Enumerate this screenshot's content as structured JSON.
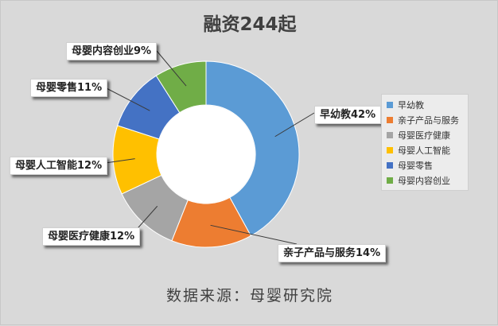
{
  "chart_data": {
    "type": "pie",
    "title": "融资244起",
    "source": "数据来源：母婴研究院",
    "donut": true,
    "legend_position": "right",
    "slices": [
      {
        "name": "早幼教",
        "value": 42,
        "label": "早幼教42%",
        "color": "#5b9bd5"
      },
      {
        "name": "亲子产品与服务",
        "value": 14,
        "label": "亲子产品与服务14%",
        "color": "#ed7d31"
      },
      {
        "name": "母婴医疗健康",
        "value": 12,
        "label": "母婴医疗健康12%",
        "color": "#a5a5a5"
      },
      {
        "name": "母婴人工智能",
        "value": 12,
        "label": "母婴人工智能12%",
        "color": "#ffc000"
      },
      {
        "name": "母婴零售",
        "value": 11,
        "label": "母婴零售11%",
        "color": "#4472c4"
      },
      {
        "name": "母婴内容创业",
        "value": 9,
        "label": "母婴内容创业9%",
        "color": "#70ad47"
      }
    ]
  }
}
